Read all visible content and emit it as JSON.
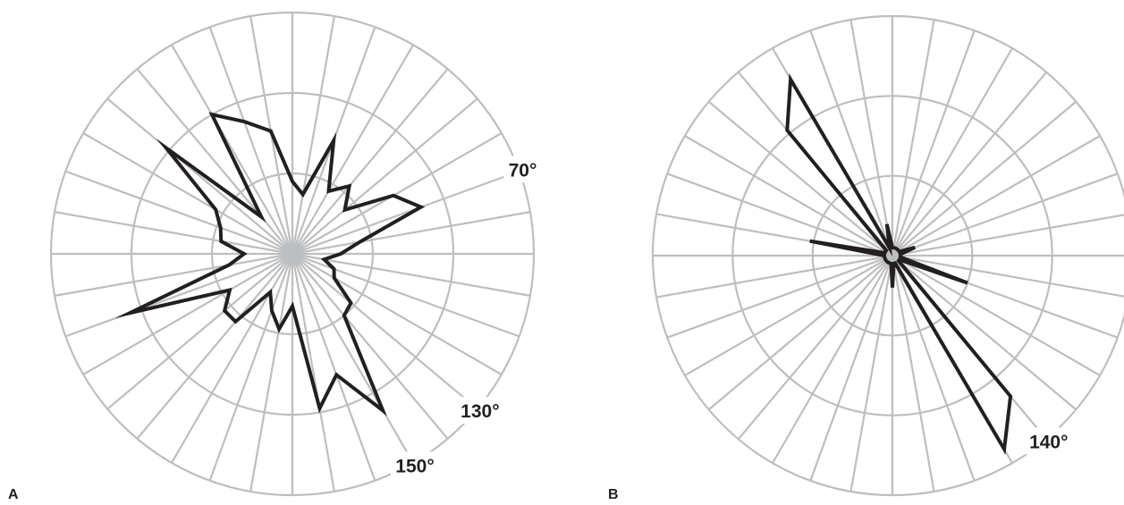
{
  "chart_data": [
    {
      "type": "polar-line",
      "panel_label": "A",
      "angle_step_deg": 10,
      "direction_convention": "0° = up (north), angles increase clockwise",
      "r_max": 3,
      "grid": true,
      "ring_values": [
        1,
        2,
        3
      ],
      "spoke_count": 36,
      "values": [
        0.9,
        0.75,
        1.5,
        0.9,
        1.1,
        0.85,
        1.45,
        1.7,
        0.85,
        0.6,
        0.4,
        0.55,
        0.6,
        0.95,
        1.0,
        2.25,
        1.6,
        1.95,
        0.65,
        0.95,
        0.75,
        0.55,
        1.1,
        1.1,
        0.9,
        2.15,
        0.8,
        0.6,
        0.9,
        0.95,
        1.1,
        2.05,
        0.6,
        2.0,
        1.75,
        1.55
      ],
      "annotations": [
        {
          "angle_deg": 70,
          "text": "70°"
        },
        {
          "angle_deg": 130,
          "text": "130°"
        },
        {
          "angle_deg": 150,
          "text": "150°"
        }
      ]
    },
    {
      "type": "polar-line",
      "panel_label": "B",
      "angle_step_deg": 10,
      "direction_convention": "0° = up (north), angles increase clockwise",
      "r_max": 3,
      "grid": true,
      "ring_values": [
        1,
        2,
        3
      ],
      "spoke_count": 36,
      "values": [
        0.1,
        0.1,
        0.1,
        0.1,
        0.1,
        0.1,
        0.1,
        0.3,
        0.1,
        0.1,
        0.1,
        1.0,
        0.1,
        0.1,
        2.3,
        2.8,
        0.1,
        0.1,
        0.4,
        0.1,
        0.1,
        0.1,
        0.1,
        0.1,
        0.1,
        0.1,
        0.1,
        0.1,
        1.05,
        0.1,
        0.1,
        0.1,
        2.05,
        2.55,
        0.1,
        0.4
      ],
      "annotations": [
        {
          "angle_deg": 140,
          "text": "140°"
        }
      ]
    }
  ]
}
